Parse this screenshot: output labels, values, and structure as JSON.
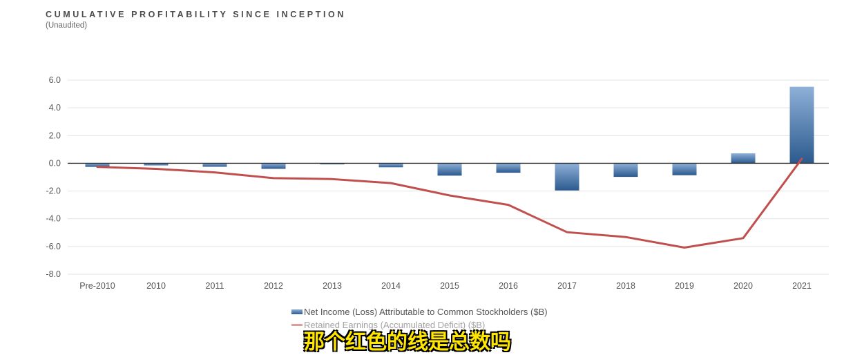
{
  "title": "CUMULATIVE PROFITABILITY SINCE INCEPTION",
  "subtitle": "(Unaudited)",
  "caption": "那个红色的线是总数吗",
  "colors": {
    "bar_top": "#8eb0d8",
    "bar_bottom": "#2c5a8e",
    "line": "#c0504d",
    "grid": "#e3e3e3",
    "zero_axis": "#333333",
    "tick_text": "#555555"
  },
  "chart_data": {
    "type": "bar",
    "categories": [
      "Pre-2010",
      "2010",
      "2011",
      "2012",
      "2013",
      "2014",
      "2015",
      "2016",
      "2017",
      "2018",
      "2019",
      "2020",
      "2021"
    ],
    "ylim": [
      -8.0,
      6.0
    ],
    "yticks": [
      "6.0",
      "4.0",
      "2.0",
      "0.0",
      "-2.0",
      "-4.0",
      "-6.0",
      "-8.0"
    ],
    "ytick_values": [
      6,
      4,
      2,
      0,
      -2,
      -4,
      -6,
      -8
    ],
    "grid": true,
    "legend_position": "bottom",
    "series": [
      {
        "name": "Net Income (Loss) Attributable to Common Stockholders ($B)",
        "type": "bar",
        "values": [
          -0.26,
          -0.15,
          -0.25,
          -0.4,
          -0.07,
          -0.29,
          -0.89,
          -0.68,
          -1.96,
          -0.98,
          -0.86,
          0.72,
          5.52
        ]
      },
      {
        "name": "Retained Earnings (Accumulated Deficit) ($B)",
        "type": "line",
        "values": [
          -0.26,
          -0.4,
          -0.66,
          -1.07,
          -1.14,
          -1.43,
          -2.32,
          -3.0,
          -4.97,
          -5.32,
          -6.08,
          -5.4,
          0.33
        ]
      }
    ]
  }
}
